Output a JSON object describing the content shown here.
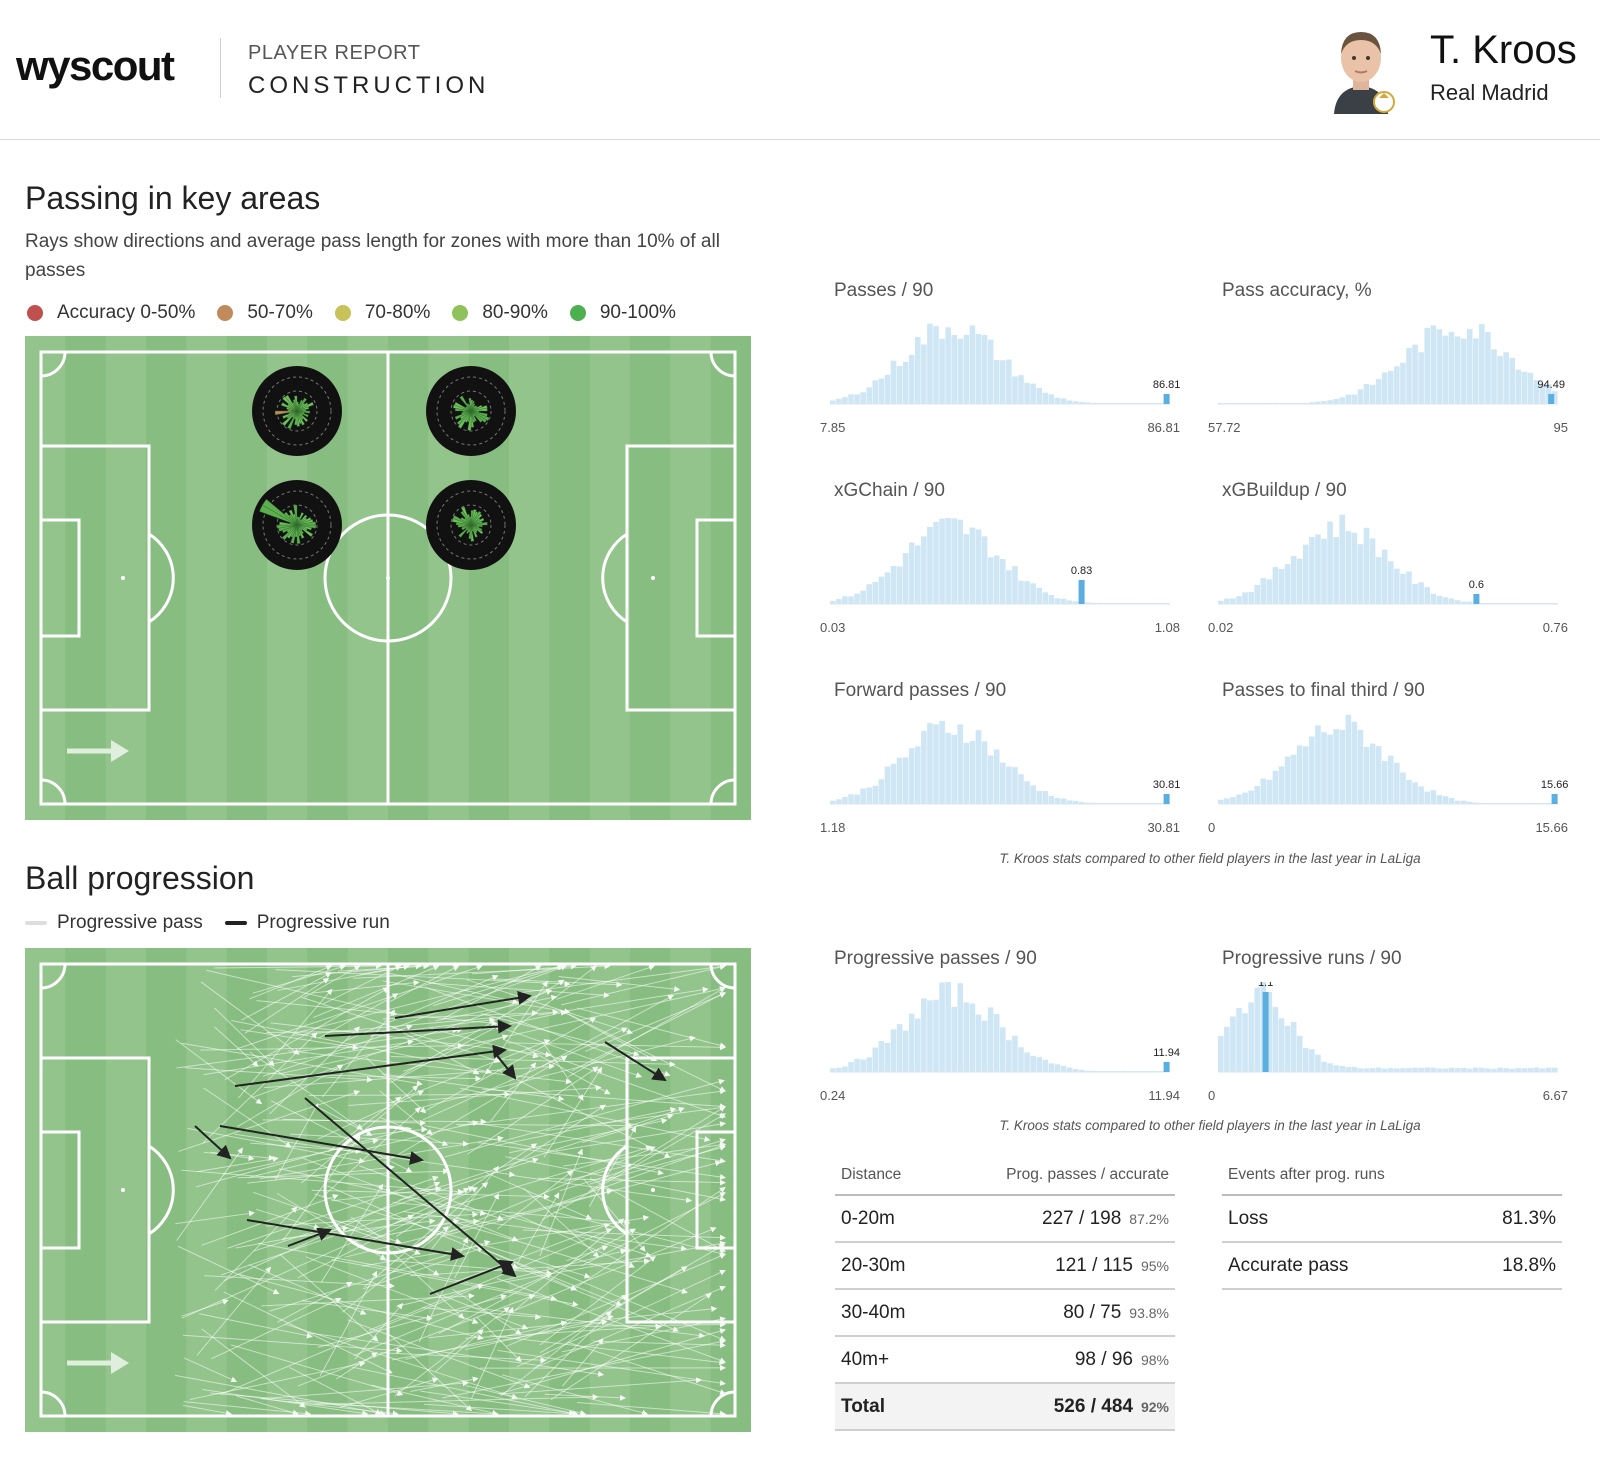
{
  "header": {
    "logo": "wyscout",
    "kicker": "PLAYER REPORT",
    "title": "CONSTRUCTION",
    "player_name": "T. Kroos",
    "team": "Real Madrid"
  },
  "passing": {
    "title": "Passing in key areas",
    "description": "Rays show directions and average pass length for zones with more than 10% of all passes",
    "legend": [
      {
        "label": "Accuracy 0-50%",
        "color": "#c0504d"
      },
      {
        "label": "50-70%",
        "color": "#c08a5a"
      },
      {
        "label": "70-80%",
        "color": "#c8c25a"
      },
      {
        "label": "80-90%",
        "color": "#8fc25a"
      },
      {
        "label": "90-100%",
        "color": "#4caf50"
      }
    ]
  },
  "progression": {
    "title": "Ball progression",
    "legend": [
      {
        "label": "Progressive pass",
        "color": "#dddddd"
      },
      {
        "label": "Progressive run",
        "color": "#222222"
      }
    ]
  },
  "histograms": [
    {
      "title": "Passes / 90",
      "min": "7.85",
      "max": "86.81",
      "marker": "86.81",
      "marker_pos": 0.99
    },
    {
      "title": "Pass accuracy, %",
      "min": "57.72",
      "max": "95",
      "marker": "94.49",
      "marker_pos": 0.98
    },
    {
      "title": "xGChain / 90",
      "min": "0.03",
      "max": "1.08",
      "marker": "0.83",
      "marker_pos": 0.74
    },
    {
      "title": "xGBuildup / 90",
      "min": "0.02",
      "max": "0.76",
      "marker": "0.6",
      "marker_pos": 0.76
    },
    {
      "title": "Forward passes / 90",
      "min": "1.18",
      "max": "30.81",
      "marker": "30.81",
      "marker_pos": 0.99
    },
    {
      "title": "Passes to final third / 90",
      "min": "0",
      "max": "15.66",
      "marker": "15.66",
      "marker_pos": 0.99
    },
    {
      "title": "Progressive passes / 90",
      "min": "0.24",
      "max": "11.94",
      "marker": "11.94",
      "marker_pos": 0.99
    },
    {
      "title": "Progressive runs / 90",
      "min": "0",
      "max": "6.67",
      "marker": "1.1",
      "marker_pos": 0.14
    }
  ],
  "footnote": "T. Kroos stats compared to other field players in the last year in LaLiga",
  "distance_table": {
    "headers": [
      "Distance",
      "Prog. passes / accurate"
    ],
    "rows": [
      {
        "distance": "0-20m",
        "value": "227 / 198",
        "pct": "87.2%"
      },
      {
        "distance": "20-30m",
        "value": "121 / 115",
        "pct": "95%"
      },
      {
        "distance": "30-40m",
        "value": "80 / 75",
        "pct": "93.8%"
      },
      {
        "distance": "40m+",
        "value": "98 / 96",
        "pct": "98%"
      }
    ],
    "total": {
      "distance": "Total",
      "value": "526 / 484",
      "pct": "92%"
    }
  },
  "events_table": {
    "header": "Events after prog. runs",
    "rows": [
      {
        "label": "Loss",
        "value": "81.3%"
      },
      {
        "label": "Accurate pass",
        "value": "18.8%"
      }
    ]
  },
  "colors": {
    "pitch_light": "#92c48c",
    "pitch_dark": "#87bd80",
    "hist_bar": "#cfe6f5",
    "hist_marker": "#5aaee0"
  }
}
